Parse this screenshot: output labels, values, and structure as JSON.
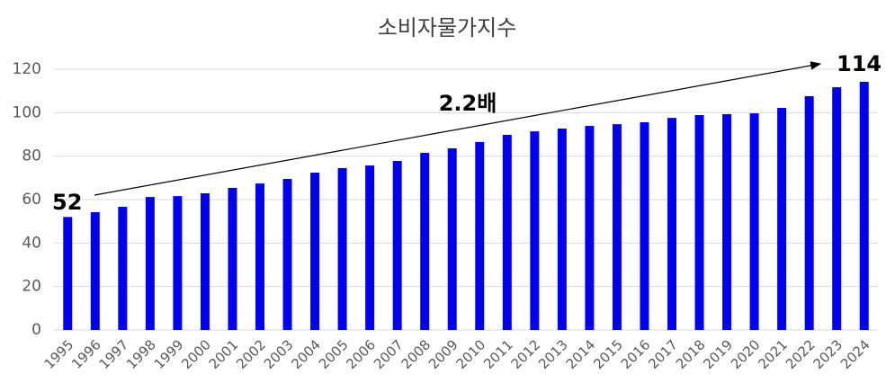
{
  "chart_data": {
    "type": "bar",
    "title": "소비자물가지수",
    "categories": [
      "1995",
      "1996",
      "1997",
      "1998",
      "1999",
      "2000",
      "2001",
      "2002",
      "2003",
      "2004",
      "2005",
      "2006",
      "2007",
      "2008",
      "2009",
      "2010",
      "2011",
      "2012",
      "2013",
      "2014",
      "2015",
      "2016",
      "2017",
      "2018",
      "2019",
      "2020",
      "2021",
      "2022",
      "2023",
      "2024"
    ],
    "values": [
      52,
      54.2,
      56.7,
      61.2,
      61.6,
      62.9,
      65.4,
      67.4,
      69.5,
      72.4,
      74.5,
      75.7,
      77.8,
      81.5,
      83.6,
      86.5,
      89.8,
      91.4,
      92.7,
      93.9,
      94.7,
      95.6,
      97.6,
      98.9,
      99.3,
      99.7,
      102.2,
      107.6,
      111.7,
      114.2
    ],
    "color": "#0000ee",
    "ylim": [
      0,
      120
    ],
    "yticks": [
      0,
      20,
      40,
      60,
      80,
      100,
      120
    ],
    "grid": true,
    "annotations": [
      {
        "text": "52"
      },
      {
        "text": "114"
      },
      {
        "text": "2.2배"
      }
    ]
  }
}
